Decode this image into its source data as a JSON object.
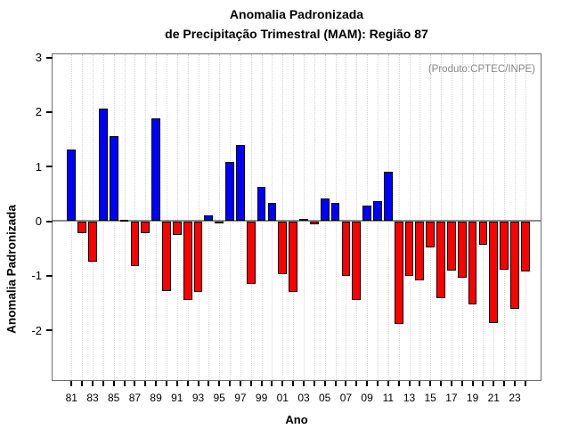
{
  "chart_data": {
    "type": "bar",
    "title_line1": "Anomalia Padronizada",
    "title_line2": "de Precipitação Trimestral (MAM): Região 87",
    "annotation": "(Produto:CPTEC/INPE)",
    "xlabel": "Ano",
    "ylabel": "Anomalia Padronizada",
    "yticks": [
      3,
      2,
      1,
      0,
      -1,
      -2
    ],
    "ylim": [
      -2.93,
      3.06
    ],
    "grid": "vertical-dotted",
    "legend": "none",
    "x_labels_every": 2,
    "categories": [
      "81",
      "82",
      "83",
      "84",
      "85",
      "86",
      "87",
      "88",
      "89",
      "90",
      "91",
      "92",
      "93",
      "94",
      "95",
      "96",
      "97",
      "98",
      "99",
      "00",
      "01",
      "02",
      "03",
      "04",
      "05",
      "06",
      "07",
      "08",
      "09",
      "10",
      "11",
      "12",
      "13",
      "14",
      "15",
      "16",
      "17",
      "18",
      "19",
      "20",
      "21",
      "22",
      "23",
      "24"
    ],
    "values": [
      1.32,
      -0.22,
      -0.74,
      2.06,
      1.56,
      0.02,
      -0.82,
      -0.22,
      1.88,
      -1.28,
      -0.26,
      -1.45,
      -1.3,
      0.1,
      -0.03,
      1.08,
      1.4,
      -1.15,
      0.62,
      0.34,
      -0.97,
      -1.3,
      0.04,
      -0.06,
      0.42,
      0.34,
      -1.01,
      -1.44,
      0.29,
      0.36,
      0.91,
      -1.88,
      -1.01,
      -1.09,
      -0.48,
      -1.41,
      -0.9,
      -1.03,
      -1.52,
      -0.43,
      -1.87,
      -0.89,
      -1.6,
      -0.92
    ],
    "colors": {
      "positive_bar": "#0000ff",
      "negative_bar": "#ff0000",
      "bar_border": "#000000",
      "zero_line": "#8c8c8c",
      "grid_line": "#d4d4d4",
      "annotation_text": "#878787",
      "text": "#000000",
      "background": "#ffffff"
    }
  }
}
